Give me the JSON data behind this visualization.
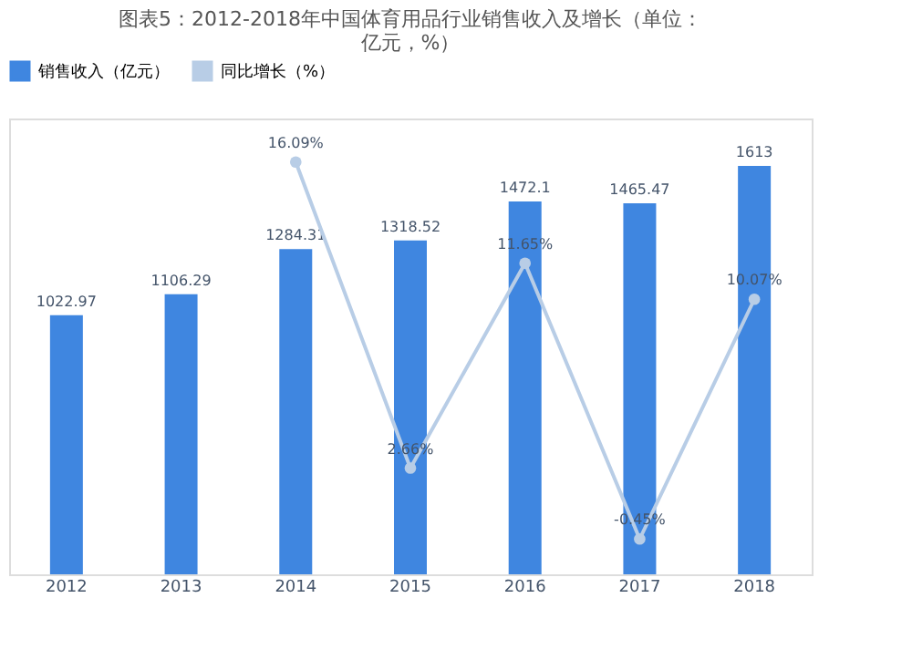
{
  "chart_data": {
    "type": "bar",
    "title": "图表5：2012-2018年中国体育用品行业销售收入及增长（单位：亿元，%）",
    "categories": [
      "2012",
      "2013",
      "2014",
      "2015",
      "2016",
      "2017",
      "2018"
    ],
    "series": [
      {
        "name": "销售收入（亿元）",
        "color": "#3f86e0",
        "values": [
          1022.97,
          1106.29,
          1284.31,
          1318.52,
          1472.1,
          1465.47,
          1613
        ],
        "value_labels": [
          "1022.97",
          "1106.29",
          "1284.31",
          "1318.52",
          "1472.1",
          "1465.47",
          "1613"
        ]
      },
      {
        "name": "同比增长（%）",
        "type": "line",
        "axis": "y2",
        "color": "#b8cde6",
        "marker": "circle",
        "values": [
          null,
          null,
          16.09,
          2.66,
          11.65,
          -0.45,
          10.07
        ],
        "value_labels": [
          null,
          null,
          "16.09%",
          "2.66%",
          "11.65%",
          "-0.45%",
          "10.07%"
        ]
      }
    ],
    "legend": "top",
    "tick_labels": "x"
  }
}
